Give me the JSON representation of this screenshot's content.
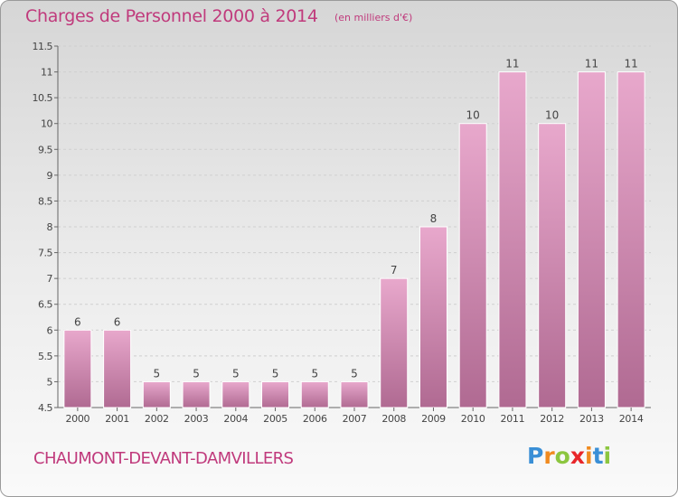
{
  "title": "Charges de Personnel 2000 à 2014",
  "subtitle": "(en milliers d'€)",
  "location": "CHAUMONT-DEVANT-DAMVILLERS",
  "logo": {
    "text": "Proxiti",
    "letter_colors": [
      "#3a8fd6",
      "#f08a1f",
      "#8cc63f",
      "#e8262a",
      "#f08a1f",
      "#3a8fd6",
      "#8cc63f"
    ]
  },
  "colors": {
    "bar_light": "#e8a8cc",
    "bar_dark": "#b06a92",
    "title": "#c03a7c",
    "axis": "#666666",
    "grid": "#cfcfcf"
  },
  "chart_data": {
    "type": "bar",
    "categories": [
      "2000",
      "2001",
      "2002",
      "2003",
      "2004",
      "2005",
      "2006",
      "2007",
      "2008",
      "2009",
      "2010",
      "2011",
      "2012",
      "2013",
      "2014"
    ],
    "values": [
      6,
      6,
      5,
      5,
      5,
      5,
      5,
      5,
      7,
      8,
      10,
      11,
      10,
      11,
      11
    ],
    "data_labels": [
      "6",
      "6",
      "5",
      "5",
      "5",
      "5",
      "5",
      "5",
      "7",
      "8",
      "10",
      "11",
      "10",
      "11",
      "11"
    ],
    "ylim": [
      4.5,
      11.5
    ],
    "yticks": [
      4.5,
      5,
      5.5,
      6,
      6.5,
      7,
      7.5,
      8,
      8.5,
      9,
      9.5,
      10,
      10.5,
      11,
      11.5
    ],
    "ytick_labels": [
      "4.5",
      "5",
      "5.5",
      "6",
      "6.5",
      "7",
      "7.5",
      "8",
      "8.5",
      "9",
      "9.5",
      "10",
      "10.5",
      "11",
      "11.5"
    ],
    "grid": true,
    "xlabel": "",
    "ylabel": ""
  }
}
